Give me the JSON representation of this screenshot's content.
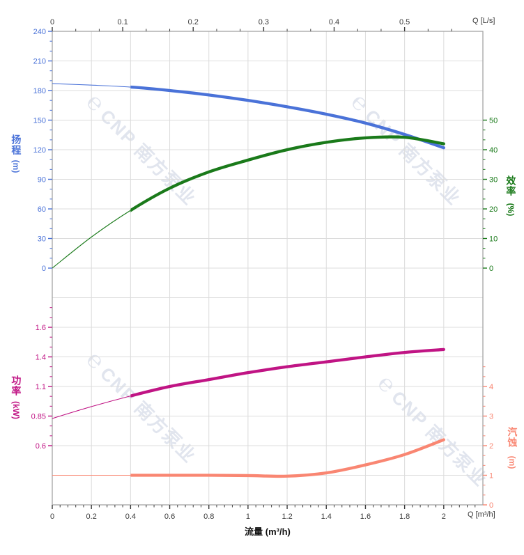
{
  "watermark": {
    "logo_glyph": "℮",
    "text": "CNP 南方泵业",
    "color": "#e1e5ee"
  },
  "labels": {
    "head_name": "扬程",
    "head_unit": "(m)",
    "efficiency_name": "效率",
    "efficiency_unit": "(%)",
    "power_name": "功率",
    "power_unit": "(kW)",
    "npsh_name": "汽蚀",
    "npsh_unit": "(m)",
    "top_axis_title": "Q [L/s]",
    "bottom_axis_title": "Q [m³/h]",
    "flow_axis_title": "流量 (m³/h)"
  },
  "colors": {
    "head": "#4a72d8",
    "efficiency": "#1a7a1a",
    "power": "#c01484",
    "npsh": "#f98672",
    "grid": "#dcdcdc",
    "frame": "#a5a5a5",
    "axis_text": "#3a3a3a",
    "watermark": "#e1e5ee"
  },
  "chart_data": {
    "type": "line",
    "title": "",
    "grid": true,
    "legend": "none",
    "x_m3h": [
      0,
      0.2,
      0.4,
      0.6,
      0.8,
      1.0,
      1.2,
      1.4,
      1.6,
      1.8,
      2.0
    ],
    "series": [
      {
        "id": "head",
        "name": "扬程 Head (m)",
        "axis": "head",
        "thick_from_x": 0.4,
        "values": [
          187,
          185.5,
          183.5,
          180,
          175.5,
          170,
          163.5,
          156,
          147,
          135.5,
          122
        ]
      },
      {
        "id": "efficiency",
        "name": "效率 Efficiency (%)",
        "axis": "efficiency",
        "thick_from_x": 0.4,
        "values": [
          0,
          10.5,
          19.5,
          27,
          32.5,
          36.5,
          40,
          42.5,
          44,
          44.2,
          42
        ]
      },
      {
        "id": "power",
        "name": "功率 Power (kW)",
        "axis": "power",
        "thick_from_x": 0.4,
        "values": [
          0.83,
          0.93,
          1.02,
          1.1,
          1.17,
          1.24,
          1.3,
          1.35,
          1.4,
          1.43,
          1.45
        ]
      },
      {
        "id": "npsh",
        "name": "汽蚀 NPSH (m)",
        "axis": "npsh",
        "thick_from_x": 0.4,
        "values": [
          1.0,
          1.0,
          1.0,
          1.0,
          1.0,
          0.99,
          0.97,
          1.08,
          1.35,
          1.7,
          2.2
        ]
      }
    ],
    "axes": {
      "top": {
        "title": "Q [L/s]",
        "tick_labels": [
          "0",
          "0.1",
          "0.2",
          "0.3",
          "0.4",
          "0.5"
        ],
        "m3h_per_Ls": 3.6,
        "minor_divisions": 3
      },
      "bottom": {
        "title": "Q [m³/h]",
        "tick_labels": [
          "0",
          "0.2",
          "0.4",
          "0.6",
          "0.8",
          "1",
          "1.2",
          "1.4",
          "1.6",
          "1.8",
          "2"
        ],
        "range": [
          0,
          2.2
        ],
        "minor_divisions": 5
      },
      "head": {
        "tick_labels": [
          "240",
          "210",
          "180",
          "150",
          "120",
          "90",
          "60",
          "30",
          "0"
        ],
        "range": [
          0,
          240
        ],
        "minor_divisions": 3
      },
      "efficiency": {
        "tick_labels": [
          "50",
          "40",
          "30",
          "20",
          "10",
          "0"
        ],
        "range": [
          0,
          50
        ],
        "minor_divisions": 3
      },
      "power": {
        "tick_labels": [
          "1.6",
          "1.4",
          "1.1",
          "0.85",
          "0.6"
        ],
        "range": [
          0.6,
          1.6
        ],
        "minor_divisions": 3
      },
      "npsh": {
        "tick_labels": [
          "4",
          "3",
          "2",
          "1",
          "0"
        ],
        "range": [
          0,
          4
        ],
        "minor_divisions": 3
      }
    }
  }
}
